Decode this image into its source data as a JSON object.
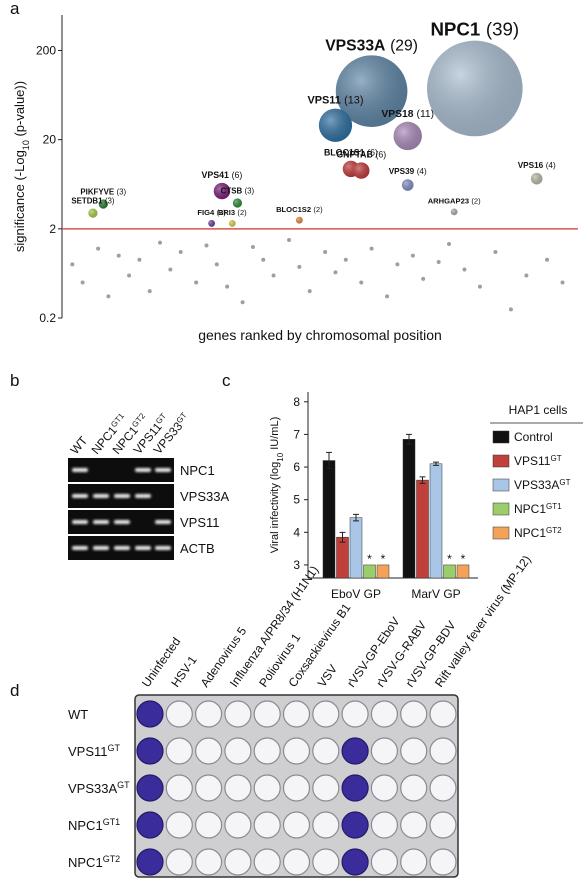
{
  "panels": [
    "a",
    "b",
    "c",
    "d"
  ],
  "chart_data": [
    {
      "type": "bubble",
      "ylabel": [
        "significance (-Log",
        "10",
        " (p-value))"
      ],
      "xlabel": "genes ranked by chromosomal position",
      "log": true,
      "ylim": [
        0.2,
        500
      ],
      "yticks": [
        0.2,
        2,
        20,
        200
      ],
      "xlim": [
        0,
        100
      ],
      "threshold": 2,
      "threshold_color": "#d9534f",
      "points": {
        "labels": [
          "NPC1",
          "VPS33A",
          "VPS11",
          "VPS18",
          "BLOC1S1",
          "GNPTAB",
          "VPS39",
          "VPS16",
          "VPS41",
          "CTSB",
          "PIKFYVE",
          "SETDB1",
          "FIG4",
          "BRI3",
          "BLOC1S2",
          "ARHGAP23"
        ],
        "x": [
          80,
          60,
          53,
          67,
          56,
          58,
          67,
          92,
          31,
          34,
          8,
          6,
          29,
          33,
          46,
          76
        ],
        "values": [
          75,
          70,
          29,
          22,
          9.4,
          9,
          6.2,
          7.3,
          5.3,
          3.9,
          3.8,
          3.0,
          2.3,
          2.3,
          2.5,
          3.1
        ],
        "sizes": [
          39,
          29,
          13,
          11,
          6,
          6,
          4,
          4,
          6,
          3,
          3,
          3,
          2,
          2,
          2,
          2
        ],
        "size_labels": [
          "(39)",
          "(29)",
          "(13)",
          "(11)",
          "(6)",
          "(6)",
          "(4)",
          "(4)",
          "(6)",
          "(3)",
          "(3)",
          "(3)",
          "(2)",
          "(2)",
          "(2)",
          "(2)"
        ],
        "colors": [
          "#a9bdd0",
          "#5f86a6",
          "#2f6fa0",
          "#a98ab8",
          "#c0393b",
          "#c0393b",
          "#7f8fc0",
          "#b8b8a8",
          "#7a1f7a",
          "#2e8b3a",
          "#2e7d32",
          "#a5c94a",
          "#6a3d9a",
          "#d6c94a",
          "#e08a3c",
          "#aaaaaa"
        ]
      },
      "background": {
        "x": [
          2,
          4,
          7,
          9,
          11,
          13,
          15,
          17,
          19,
          21,
          23,
          26,
          28,
          30,
          32,
          35,
          37,
          39,
          41,
          44,
          46,
          48,
          51,
          53,
          55,
          58,
          60,
          63,
          65,
          68,
          70,
          73,
          75,
          78,
          81,
          84,
          87,
          90,
          94,
          97
        ],
        "values": [
          0.8,
          0.5,
          1.2,
          0.35,
          1.0,
          0.6,
          0.9,
          0.4,
          1.4,
          0.7,
          1.1,
          0.5,
          1.3,
          0.8,
          0.45,
          0.3,
          1.25,
          0.9,
          0.6,
          1.5,
          0.75,
          0.4,
          1.1,
          0.65,
          0.9,
          0.5,
          1.2,
          0.35,
          0.8,
          1.0,
          0.55,
          0.85,
          1.35,
          0.7,
          0.45,
          1.1,
          0.25,
          0.6,
          0.9,
          0.5
        ],
        "color": "#9aa0a6"
      }
    },
    {
      "type": "bar",
      "ylabel": [
        "Viral infectivity (log",
        "10",
        " IU/mL)"
      ],
      "ylim": [
        2.6,
        8.3
      ],
      "yticks": [
        3,
        4,
        5,
        6,
        7,
        8
      ],
      "categories": [
        "EboV GP",
        "MarV GP"
      ],
      "legend_title": "HAP1 cells",
      "series": [
        {
          "name": "Control",
          "color": "#111111",
          "values": [
            6.2,
            6.85
          ],
          "errors": [
            0.25,
            0.15
          ]
        },
        {
          "name": "VPS11",
          "name_sup": "GT",
          "color": "#c0413b",
          "values": [
            3.85,
            5.6
          ],
          "errors": [
            0.15,
            0.1
          ]
        },
        {
          "name": "VPS33A",
          "name_sup": "GT",
          "color": "#a9c6e6",
          "values": [
            4.45,
            6.1
          ],
          "errors": [
            0.1,
            0.05
          ]
        },
        {
          "name": "NPC1",
          "name_sup": "GT1",
          "color": "#9bcd6a",
          "values": [
            3,
            3
          ],
          "note": "*"
        },
        {
          "name": "NPC1",
          "name_sup": "GT2",
          "color": "#f4a25a",
          "values": [
            3,
            3
          ],
          "note": "*"
        }
      ]
    }
  ],
  "gel": {
    "lanes": [
      {
        "name": "WT"
      },
      {
        "name": "NPC1",
        "sup": "GT1"
      },
      {
        "name": "NPC1",
        "sup": "GT2"
      },
      {
        "name": "VPS11",
        "sup": "GT"
      },
      {
        "name": "VPS33",
        "sup": "GT"
      }
    ],
    "rows": [
      "NPC1",
      "VPS33A",
      "VPS11",
      "ACTB"
    ],
    "bands": [
      [
        1,
        0,
        0,
        1,
        1
      ],
      [
        1,
        1,
        1,
        1,
        0
      ],
      [
        1,
        1,
        1,
        0,
        1
      ],
      [
        1,
        1,
        1,
        1,
        1
      ]
    ]
  },
  "plate": {
    "columns": [
      "Uninfected",
      "HSV-1",
      "Adenovirus 5",
      "Influenza A/PR8/34 (H1N1)",
      "Poliovirus 1",
      "Coxsackievirus B1",
      "VSV",
      "rVSV-GP-EboV",
      "rVSV-G-RABV",
      "rVSV-GP-BDV",
      "Rift valley fever virus (MP-12)"
    ],
    "rows": [
      {
        "name": "WT"
      },
      {
        "name": "VPS11",
        "sup": "GT"
      },
      {
        "name": "VPS33A",
        "sup": "GT"
      },
      {
        "name": "NPC1",
        "sup": "GT1"
      },
      {
        "name": "NPC1",
        "sup": "GT2"
      }
    ],
    "stained": [
      [
        1,
        0,
        0,
        0,
        0,
        0,
        0,
        0,
        0,
        0,
        0
      ],
      [
        1,
        0,
        0,
        0,
        0,
        0,
        0,
        1,
        0,
        0,
        0
      ],
      [
        1,
        0,
        0,
        0,
        0,
        0,
        0,
        1,
        0,
        0,
        0
      ],
      [
        1,
        0,
        0,
        0,
        0,
        0,
        0,
        1,
        0,
        0,
        0
      ],
      [
        1,
        0,
        0,
        0,
        0,
        0,
        0,
        1,
        0,
        0,
        0
      ]
    ]
  }
}
